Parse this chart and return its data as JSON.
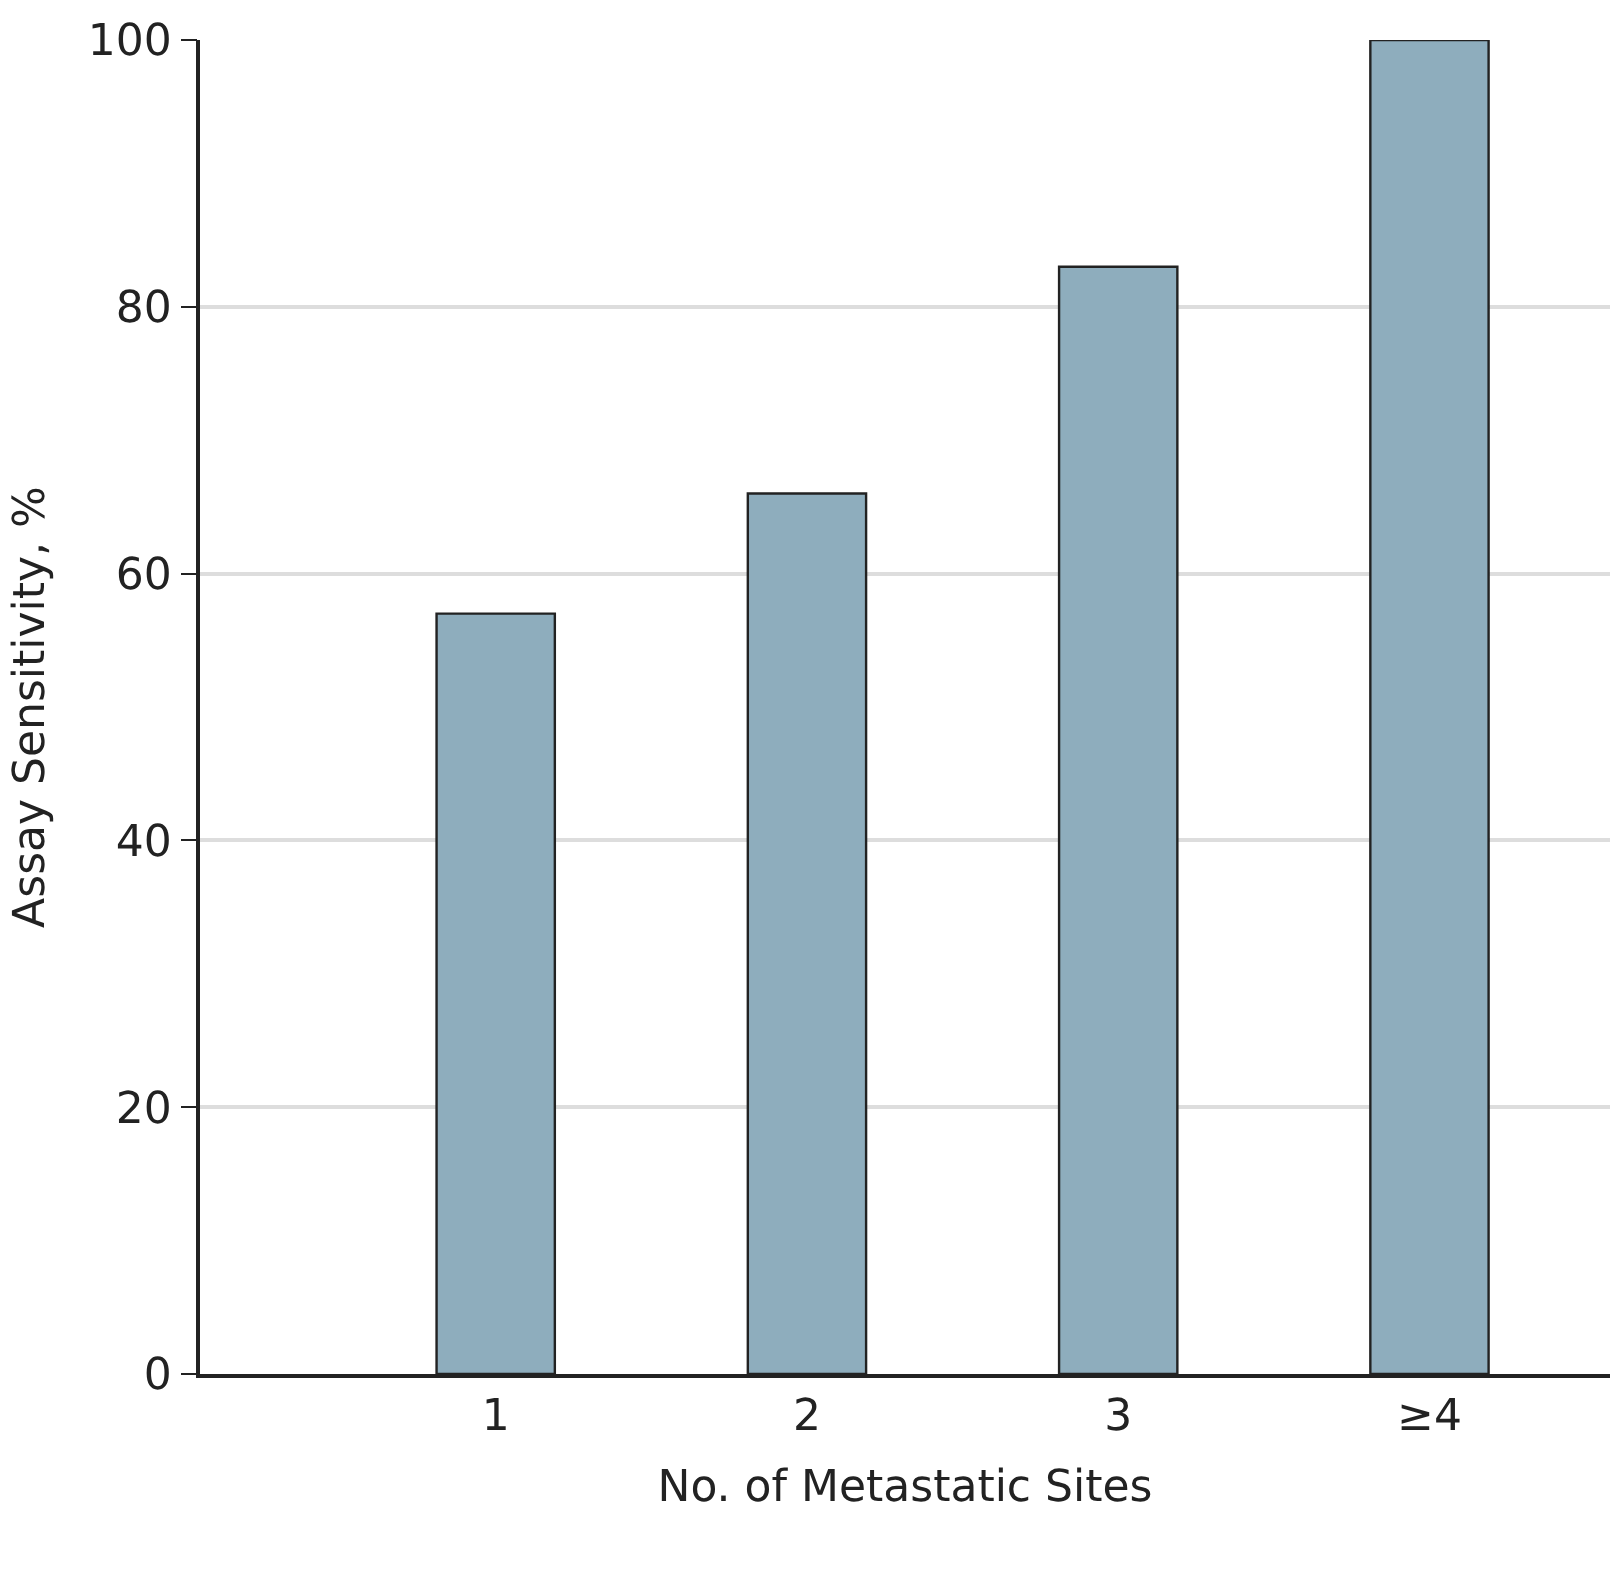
{
  "chart_data": {
    "type": "bar",
    "xlabel": "No. of Metastatic Sites",
    "ylabel": "Assay Sensitivity, %",
    "categories": [
      "1",
      "2",
      "3",
      "≥4"
    ],
    "values": [
      57,
      66,
      83,
      100
    ],
    "color": "#8eadbd",
    "ylim": [
      0,
      100
    ],
    "yticks": [
      0,
      20,
      40,
      60,
      80,
      100
    ],
    "grid": "y"
  }
}
